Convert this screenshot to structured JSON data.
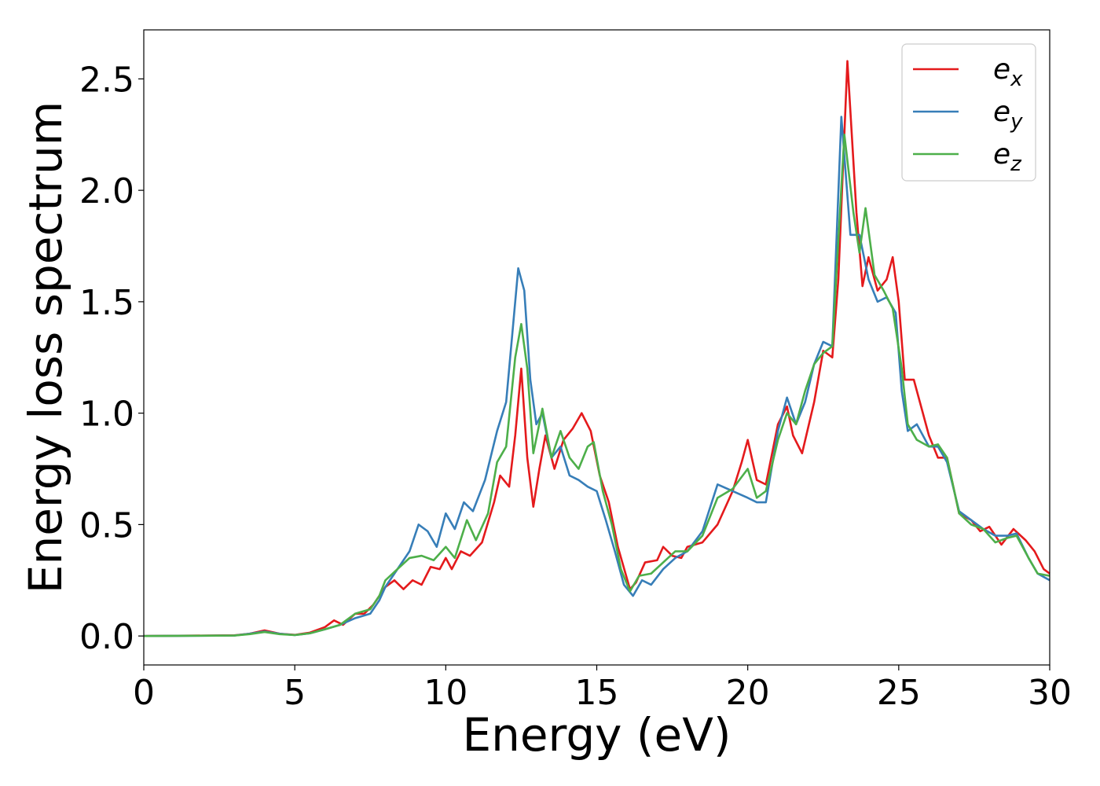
{
  "chart_data": {
    "type": "line",
    "xlabel": "Energy (eV)",
    "ylabel": "Energy loss spectrum",
    "xlim": [
      0,
      30
    ],
    "ylim": [
      -0.13,
      2.72
    ],
    "xticks": [
      0,
      5,
      10,
      15,
      20,
      25,
      30
    ],
    "xtick_labels": [
      "0",
      "5",
      "10",
      "15",
      "20",
      "25",
      "30"
    ],
    "yticks": [
      0.0,
      0.5,
      1.0,
      1.5,
      2.0,
      2.5
    ],
    "ytick_labels": [
      "0.0",
      "0.5",
      "1.0",
      "1.5",
      "2.0",
      "2.5"
    ],
    "grid": false,
    "legend": {
      "position": "top-right"
    },
    "series": [
      {
        "name": "e",
        "subscript": "x",
        "color": "#e41a1c",
        "points": [
          [
            0,
            0
          ],
          [
            3,
            0.003
          ],
          [
            3.5,
            0.01
          ],
          [
            4,
            0.025
          ],
          [
            4.5,
            0.01
          ],
          [
            5,
            0.005
          ],
          [
            5.5,
            0.015
          ],
          [
            6,
            0.04
          ],
          [
            6.3,
            0.07
          ],
          [
            6.6,
            0.05
          ],
          [
            7,
            0.1
          ],
          [
            7.3,
            0.1
          ],
          [
            7.6,
            0.14
          ],
          [
            8,
            0.22
          ],
          [
            8.3,
            0.25
          ],
          [
            8.6,
            0.21
          ],
          [
            8.9,
            0.25
          ],
          [
            9.2,
            0.23
          ],
          [
            9.5,
            0.31
          ],
          [
            9.8,
            0.3
          ],
          [
            10,
            0.35
          ],
          [
            10.2,
            0.3
          ],
          [
            10.5,
            0.38
          ],
          [
            10.8,
            0.36
          ],
          [
            11.2,
            0.42
          ],
          [
            11.6,
            0.6
          ],
          [
            11.8,
            0.72
          ],
          [
            12.1,
            0.67
          ],
          [
            12.3,
            0.9
          ],
          [
            12.5,
            1.2
          ],
          [
            12.7,
            0.8
          ],
          [
            12.9,
            0.58
          ],
          [
            13.1,
            0.75
          ],
          [
            13.3,
            0.9
          ],
          [
            13.6,
            0.75
          ],
          [
            13.9,
            0.88
          ],
          [
            14.2,
            0.93
          ],
          [
            14.5,
            1.0
          ],
          [
            14.8,
            0.92
          ],
          [
            15.1,
            0.72
          ],
          [
            15.4,
            0.6
          ],
          [
            15.7,
            0.4
          ],
          [
            16.1,
            0.21
          ],
          [
            16.3,
            0.24
          ],
          [
            16.6,
            0.33
          ],
          [
            17,
            0.34
          ],
          [
            17.2,
            0.4
          ],
          [
            17.5,
            0.36
          ],
          [
            17.8,
            0.35
          ],
          [
            18,
            0.4
          ],
          [
            18.5,
            0.42
          ],
          [
            19,
            0.5
          ],
          [
            19.5,
            0.65
          ],
          [
            19.8,
            0.78
          ],
          [
            20,
            0.88
          ],
          [
            20.3,
            0.7
          ],
          [
            20.6,
            0.68
          ],
          [
            21,
            0.95
          ],
          [
            21.3,
            1.03
          ],
          [
            21.5,
            0.9
          ],
          [
            21.8,
            0.82
          ],
          [
            22.2,
            1.05
          ],
          [
            22.5,
            1.28
          ],
          [
            22.8,
            1.25
          ],
          [
            23,
            1.6
          ],
          [
            23.3,
            2.58
          ],
          [
            23.6,
            1.9
          ],
          [
            23.8,
            1.57
          ],
          [
            24,
            1.7
          ],
          [
            24.3,
            1.55
          ],
          [
            24.6,
            1.6
          ],
          [
            24.8,
            1.7
          ],
          [
            25,
            1.5
          ],
          [
            25.2,
            1.15
          ],
          [
            25.5,
            1.15
          ],
          [
            25.8,
            1.0
          ],
          [
            26,
            0.9
          ],
          [
            26.3,
            0.8
          ],
          [
            26.6,
            0.8
          ],
          [
            27,
            0.55
          ],
          [
            27.4,
            0.52
          ],
          [
            27.7,
            0.47
          ],
          [
            28,
            0.49
          ],
          [
            28.4,
            0.41
          ],
          [
            28.8,
            0.48
          ],
          [
            29.2,
            0.43
          ],
          [
            29.5,
            0.38
          ],
          [
            29.8,
            0.3
          ],
          [
            30,
            0.28
          ]
        ]
      },
      {
        "name": "e",
        "subscript": "y",
        "color": "#377eb8",
        "points": [
          [
            0,
            0
          ],
          [
            3,
            0.002
          ],
          [
            3.5,
            0.01
          ],
          [
            4,
            0.02
          ],
          [
            4.5,
            0.01
          ],
          [
            5,
            0.004
          ],
          [
            5.5,
            0.012
          ],
          [
            6,
            0.03
          ],
          [
            6.5,
            0.05
          ],
          [
            7,
            0.08
          ],
          [
            7.5,
            0.1
          ],
          [
            7.8,
            0.16
          ],
          [
            8,
            0.22
          ],
          [
            8.4,
            0.3
          ],
          [
            8.8,
            0.38
          ],
          [
            9.1,
            0.5
          ],
          [
            9.4,
            0.47
          ],
          [
            9.7,
            0.4
          ],
          [
            10,
            0.55
          ],
          [
            10.3,
            0.48
          ],
          [
            10.6,
            0.6
          ],
          [
            10.9,
            0.56
          ],
          [
            11.3,
            0.7
          ],
          [
            11.7,
            0.92
          ],
          [
            12,
            1.05
          ],
          [
            12.3,
            1.5
          ],
          [
            12.4,
            1.65
          ],
          [
            12.6,
            1.55
          ],
          [
            12.8,
            1.15
          ],
          [
            13,
            0.95
          ],
          [
            13.2,
            1.0
          ],
          [
            13.5,
            0.8
          ],
          [
            13.8,
            0.85
          ],
          [
            14.1,
            0.72
          ],
          [
            14.4,
            0.7
          ],
          [
            14.7,
            0.67
          ],
          [
            15,
            0.65
          ],
          [
            15.3,
            0.52
          ],
          [
            15.6,
            0.38
          ],
          [
            15.9,
            0.23
          ],
          [
            16.2,
            0.18
          ],
          [
            16.5,
            0.25
          ],
          [
            16.8,
            0.23
          ],
          [
            17.2,
            0.3
          ],
          [
            17.6,
            0.35
          ],
          [
            18,
            0.38
          ],
          [
            18.5,
            0.47
          ],
          [
            19,
            0.68
          ],
          [
            19.5,
            0.65
          ],
          [
            20,
            0.62
          ],
          [
            20.3,
            0.6
          ],
          [
            20.6,
            0.6
          ],
          [
            21,
            0.92
          ],
          [
            21.3,
            1.07
          ],
          [
            21.6,
            0.95
          ],
          [
            21.9,
            1.05
          ],
          [
            22.2,
            1.22
          ],
          [
            22.5,
            1.32
          ],
          [
            22.8,
            1.3
          ],
          [
            23.1,
            2.33
          ],
          [
            23.4,
            1.8
          ],
          [
            23.7,
            1.8
          ],
          [
            24,
            1.6
          ],
          [
            24.3,
            1.5
          ],
          [
            24.6,
            1.52
          ],
          [
            24.9,
            1.45
          ],
          [
            25.1,
            1.1
          ],
          [
            25.3,
            0.92
          ],
          [
            25.6,
            0.95
          ],
          [
            26,
            0.85
          ],
          [
            26.3,
            0.85
          ],
          [
            26.6,
            0.78
          ],
          [
            27,
            0.56
          ],
          [
            27.4,
            0.52
          ],
          [
            27.8,
            0.48
          ],
          [
            28.2,
            0.45
          ],
          [
            28.6,
            0.45
          ],
          [
            28.9,
            0.46
          ],
          [
            29.3,
            0.35
          ],
          [
            29.6,
            0.28
          ],
          [
            30,
            0.25
          ]
        ]
      },
      {
        "name": "e",
        "subscript": "z",
        "color": "#4daf4a",
        "points": [
          [
            0,
            0
          ],
          [
            3,
            0.002
          ],
          [
            3.5,
            0.008
          ],
          [
            4,
            0.018
          ],
          [
            4.5,
            0.008
          ],
          [
            5,
            0.004
          ],
          [
            5.5,
            0.012
          ],
          [
            6,
            0.03
          ],
          [
            6.5,
            0.05
          ],
          [
            7,
            0.1
          ],
          [
            7.5,
            0.12
          ],
          [
            7.8,
            0.18
          ],
          [
            8,
            0.25
          ],
          [
            8.4,
            0.3
          ],
          [
            8.8,
            0.35
          ],
          [
            9.2,
            0.36
          ],
          [
            9.6,
            0.34
          ],
          [
            10,
            0.4
          ],
          [
            10.3,
            0.35
          ],
          [
            10.7,
            0.52
          ],
          [
            11,
            0.43
          ],
          [
            11.4,
            0.55
          ],
          [
            11.7,
            0.78
          ],
          [
            12,
            0.85
          ],
          [
            12.3,
            1.25
          ],
          [
            12.5,
            1.4
          ],
          [
            12.7,
            1.2
          ],
          [
            12.9,
            0.82
          ],
          [
            13.2,
            1.02
          ],
          [
            13.5,
            0.8
          ],
          [
            13.8,
            0.92
          ],
          [
            14.1,
            0.8
          ],
          [
            14.4,
            0.75
          ],
          [
            14.7,
            0.85
          ],
          [
            14.9,
            0.87
          ],
          [
            15.2,
            0.65
          ],
          [
            15.5,
            0.5
          ],
          [
            15.8,
            0.3
          ],
          [
            16.1,
            0.2
          ],
          [
            16.4,
            0.27
          ],
          [
            16.8,
            0.28
          ],
          [
            17.2,
            0.33
          ],
          [
            17.6,
            0.38
          ],
          [
            18,
            0.38
          ],
          [
            18.5,
            0.45
          ],
          [
            19,
            0.62
          ],
          [
            19.5,
            0.66
          ],
          [
            20,
            0.75
          ],
          [
            20.3,
            0.62
          ],
          [
            20.6,
            0.65
          ],
          [
            21,
            0.88
          ],
          [
            21.3,
            1.0
          ],
          [
            21.6,
            0.95
          ],
          [
            21.9,
            1.1
          ],
          [
            22.2,
            1.22
          ],
          [
            22.5,
            1.27
          ],
          [
            22.8,
            1.3
          ],
          [
            23.2,
            2.25
          ],
          [
            23.5,
            1.9
          ],
          [
            23.7,
            1.72
          ],
          [
            23.9,
            1.92
          ],
          [
            24.2,
            1.62
          ],
          [
            24.5,
            1.55
          ],
          [
            24.8,
            1.47
          ],
          [
            25.1,
            1.2
          ],
          [
            25.3,
            0.95
          ],
          [
            25.6,
            0.88
          ],
          [
            26,
            0.85
          ],
          [
            26.3,
            0.86
          ],
          [
            26.6,
            0.8
          ],
          [
            27,
            0.55
          ],
          [
            27.4,
            0.5
          ],
          [
            27.8,
            0.48
          ],
          [
            28.2,
            0.42
          ],
          [
            28.6,
            0.44
          ],
          [
            28.9,
            0.45
          ],
          [
            29.3,
            0.35
          ],
          [
            29.6,
            0.28
          ],
          [
            30,
            0.27
          ]
        ]
      }
    ]
  }
}
